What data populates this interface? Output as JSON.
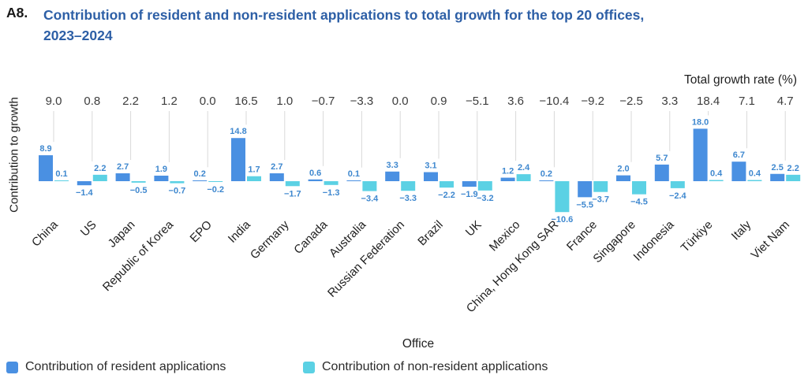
{
  "header": {
    "figure_number": "A8.",
    "title": "Contribution of resident and non-resident applications to total growth for the top 20 offices, 2023–2024"
  },
  "colors": {
    "resident": "#4a90e2",
    "non_resident": "#5bd1e4",
    "value_label": "#3f88cf",
    "growth_label": "#3d3d3d",
    "leader_line": "#d9d9d9",
    "title": "#2d5fa6",
    "axis_text": "#1f1f1f"
  },
  "chart_data": {
    "type": "bar",
    "title": "Contribution of resident and non-resident applications to total growth for the top 20 offices, 2023–2024",
    "xlabel": "Office",
    "ylabel": "Contribution to growth",
    "secondary_label": "Total growth rate (%)",
    "grid": false,
    "legend_position": "bottom-left",
    "ylim": [
      -12,
      20
    ],
    "categories": [
      "China",
      "US",
      "Japan",
      "Republic of Korea",
      "EPO",
      "India",
      "Germany",
      "Canada",
      "Australia",
      "Russian Federation",
      "Brazil",
      "UK",
      "Mexico",
      "China, Hong Kong SAR",
      "France",
      "Singapore",
      "Indonesia",
      "Türkiye",
      "Italy",
      "Viet Nam"
    ],
    "series": [
      {
        "name": "Contribution of resident applications",
        "color_key": "resident",
        "values": [
          8.9,
          -1.4,
          2.7,
          1.9,
          0.2,
          14.8,
          2.7,
          0.6,
          0.1,
          3.3,
          3.1,
          -1.9,
          1.2,
          0.2,
          -5.5,
          2.0,
          5.7,
          18.0,
          6.7,
          2.5
        ]
      },
      {
        "name": "Contribution of non-resident applications",
        "color_key": "non_resident",
        "values": [
          0.1,
          2.2,
          -0.5,
          -0.7,
          -0.2,
          1.7,
          -1.7,
          -1.3,
          -3.4,
          -3.3,
          -2.2,
          -3.2,
          2.4,
          -10.6,
          -3.7,
          -4.5,
          -2.4,
          0.4,
          0.4,
          2.2
        ]
      }
    ],
    "total_growth_rate": [
      9.0,
      0.8,
      2.2,
      1.2,
      0.0,
      16.5,
      1.0,
      -0.7,
      -3.3,
      0.0,
      0.9,
      -5.1,
      3.6,
      -10.4,
      -9.2,
      -2.5,
      3.3,
      18.4,
      7.1,
      4.7
    ]
  }
}
